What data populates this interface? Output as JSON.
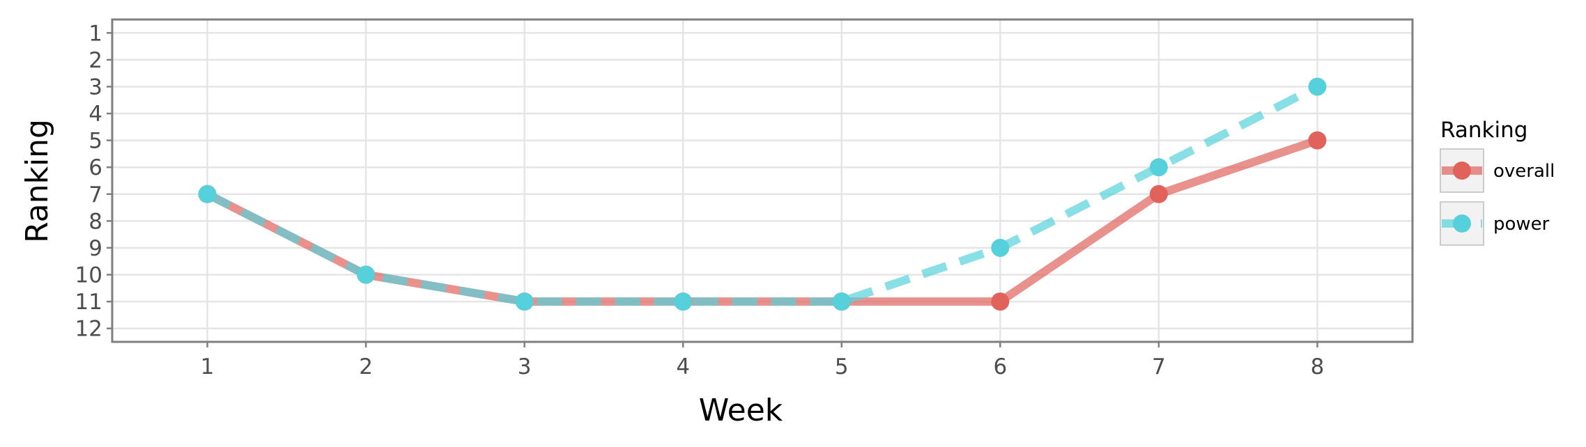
{
  "chart_data": {
    "type": "line",
    "xlabel": "Week",
    "ylabel": "Ranking",
    "x": [
      1,
      2,
      3,
      4,
      5,
      6,
      7,
      8
    ],
    "x_ticks": [
      "1",
      "2",
      "3",
      "4",
      "5",
      "6",
      "7",
      "8"
    ],
    "y_ticks": [
      "1",
      "2",
      "3",
      "4",
      "5",
      "6",
      "7",
      "8",
      "9",
      "10",
      "11",
      "12"
    ],
    "xlim": [
      0.4,
      8.6
    ],
    "ylim": [
      12.5,
      0.5
    ],
    "y_reversed": true,
    "grid": true,
    "legend": {
      "title": "Ranking",
      "placement": "right"
    },
    "series": [
      {
        "name": "overall",
        "values": [
          7,
          10,
          11,
          11,
          11,
          11,
          7,
          5
        ],
        "color": "#e0625b",
        "line_style": "solid"
      },
      {
        "name": "power",
        "values": [
          7,
          10,
          11,
          11,
          11,
          9,
          6,
          3
        ],
        "color": "#56d1dc",
        "line_style": "dashed"
      }
    ]
  }
}
